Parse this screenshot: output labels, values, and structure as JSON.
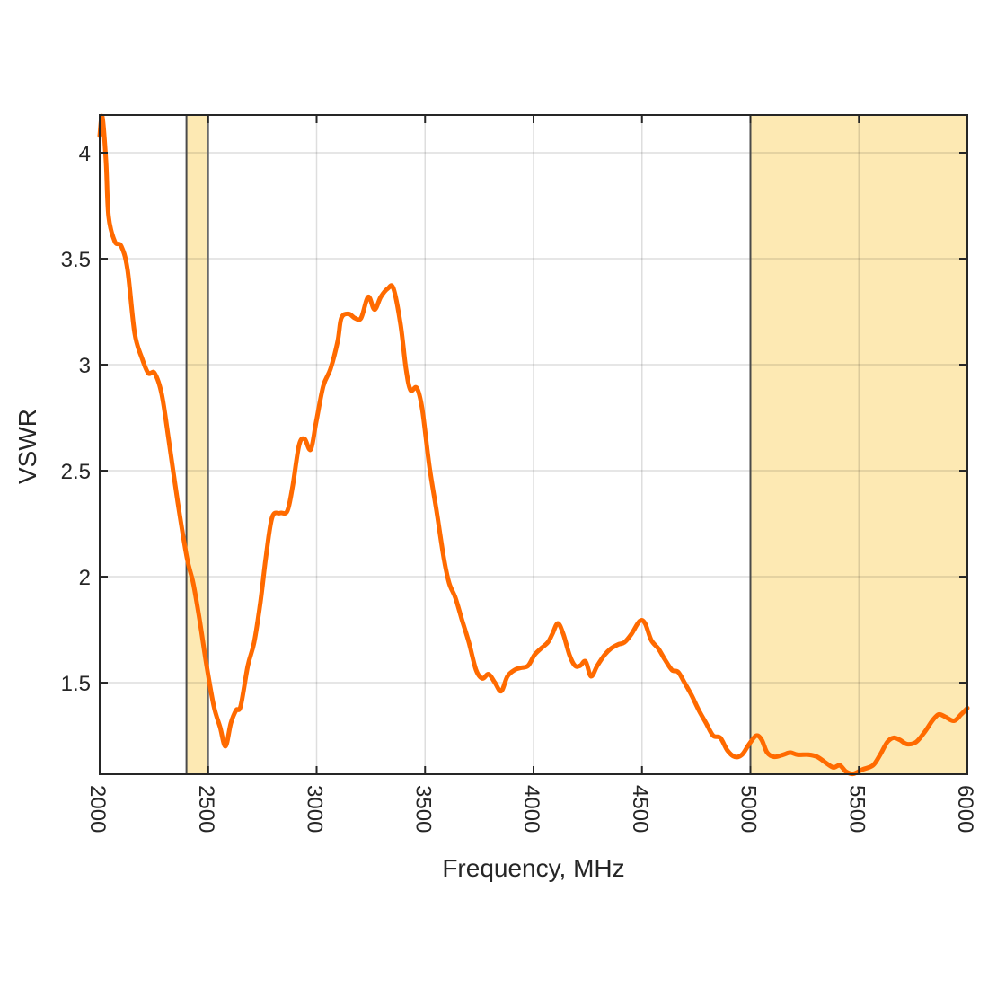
{
  "chart_data": {
    "type": "line",
    "title": "",
    "xlabel": "Frequency, MHz",
    "ylabel": "VSWR",
    "xlim": [
      2000,
      6000
    ],
    "ylim": [
      1.068,
      4.178
    ],
    "grid": true,
    "xticks": [
      2000,
      2500,
      3000,
      3500,
      4000,
      4500,
      5000,
      5500,
      6000
    ],
    "xtick_labels": [
      "2000",
      "2500",
      "3000",
      "3500",
      "4000",
      "4500",
      "5000",
      "5500",
      "6000"
    ],
    "yticks": [
      1.5,
      2,
      2.5,
      3,
      3.5,
      4
    ],
    "ytick_labels": [
      "1.5",
      "2",
      "2.5",
      "3",
      "3.5",
      "4"
    ],
    "shaded_bands": [
      {
        "from": 2400,
        "to": 2500,
        "color": "#fde9b3"
      },
      {
        "from": 5000,
        "to": 6000,
        "color": "#fde9b3"
      }
    ],
    "series": [
      {
        "name": "VSWR",
        "color": "#ff6a00",
        "x": [
          2000,
          2012,
          2029,
          2041,
          2070,
          2099,
          2128,
          2161,
          2195,
          2224,
          2253,
          2286,
          2319,
          2360,
          2402,
          2431,
          2460,
          2493,
          2526,
          2555,
          2580,
          2605,
          2629,
          2650,
          2683,
          2712,
          2741,
          2766,
          2795,
          2832,
          2865,
          2890,
          2919,
          2944,
          2973,
          2998,
          3031,
          3064,
          3097,
          3114,
          3147,
          3176,
          3205,
          3238,
          3267,
          3296,
          3329,
          3354,
          3387,
          3412,
          3433,
          3462,
          3487,
          3520,
          3553,
          3586,
          3611,
          3640,
          3669,
          3702,
          3735,
          3764,
          3793,
          3822,
          3851,
          3880,
          3913,
          3942,
          3975,
          4004,
          4033,
          4066,
          4087,
          4112,
          4137,
          4166,
          4191,
          4215,
          4240,
          4265,
          4294,
          4327,
          4356,
          4390,
          4419,
          4452,
          4489,
          4514,
          4543,
          4576,
          4605,
          4638,
          4667,
          4696,
          4729,
          4762,
          4795,
          4828,
          4861,
          4894,
          4928,
          4961,
          4994,
          5027,
          5052,
          5077,
          5110,
          5151,
          5184,
          5217,
          5267,
          5308,
          5350,
          5383,
          5412,
          5441,
          5474,
          5516,
          5565,
          5598,
          5631,
          5660,
          5689,
          5722,
          5764,
          5805,
          5838,
          5867,
          5896,
          5938,
          5971,
          6000
        ],
        "y": [
          4.08,
          4.17,
          3.96,
          3.7,
          3.58,
          3.56,
          3.45,
          3.15,
          3.03,
          2.96,
          2.96,
          2.86,
          2.64,
          2.35,
          2.09,
          1.97,
          1.8,
          1.58,
          1.39,
          1.29,
          1.2,
          1.31,
          1.37,
          1.39,
          1.58,
          1.69,
          1.88,
          2.09,
          2.28,
          2.3,
          2.31,
          2.43,
          2.62,
          2.65,
          2.6,
          2.73,
          2.9,
          2.98,
          3.11,
          3.22,
          3.24,
          3.22,
          3.22,
          3.32,
          3.26,
          3.32,
          3.36,
          3.36,
          3.19,
          2.98,
          2.88,
          2.89,
          2.79,
          2.52,
          2.31,
          2.09,
          1.97,
          1.9,
          1.8,
          1.69,
          1.56,
          1.52,
          1.54,
          1.5,
          1.46,
          1.53,
          1.56,
          1.57,
          1.58,
          1.63,
          1.66,
          1.69,
          1.73,
          1.78,
          1.73,
          1.63,
          1.58,
          1.58,
          1.6,
          1.53,
          1.58,
          1.63,
          1.66,
          1.68,
          1.69,
          1.73,
          1.79,
          1.78,
          1.7,
          1.66,
          1.61,
          1.56,
          1.55,
          1.5,
          1.44,
          1.37,
          1.31,
          1.25,
          1.24,
          1.18,
          1.15,
          1.16,
          1.21,
          1.25,
          1.23,
          1.17,
          1.15,
          1.16,
          1.17,
          1.16,
          1.16,
          1.15,
          1.12,
          1.1,
          1.11,
          1.08,
          1.07,
          1.09,
          1.11,
          1.16,
          1.22,
          1.24,
          1.23,
          1.21,
          1.22,
          1.27,
          1.32,
          1.35,
          1.34,
          1.32,
          1.35,
          1.38
        ]
      }
    ]
  }
}
